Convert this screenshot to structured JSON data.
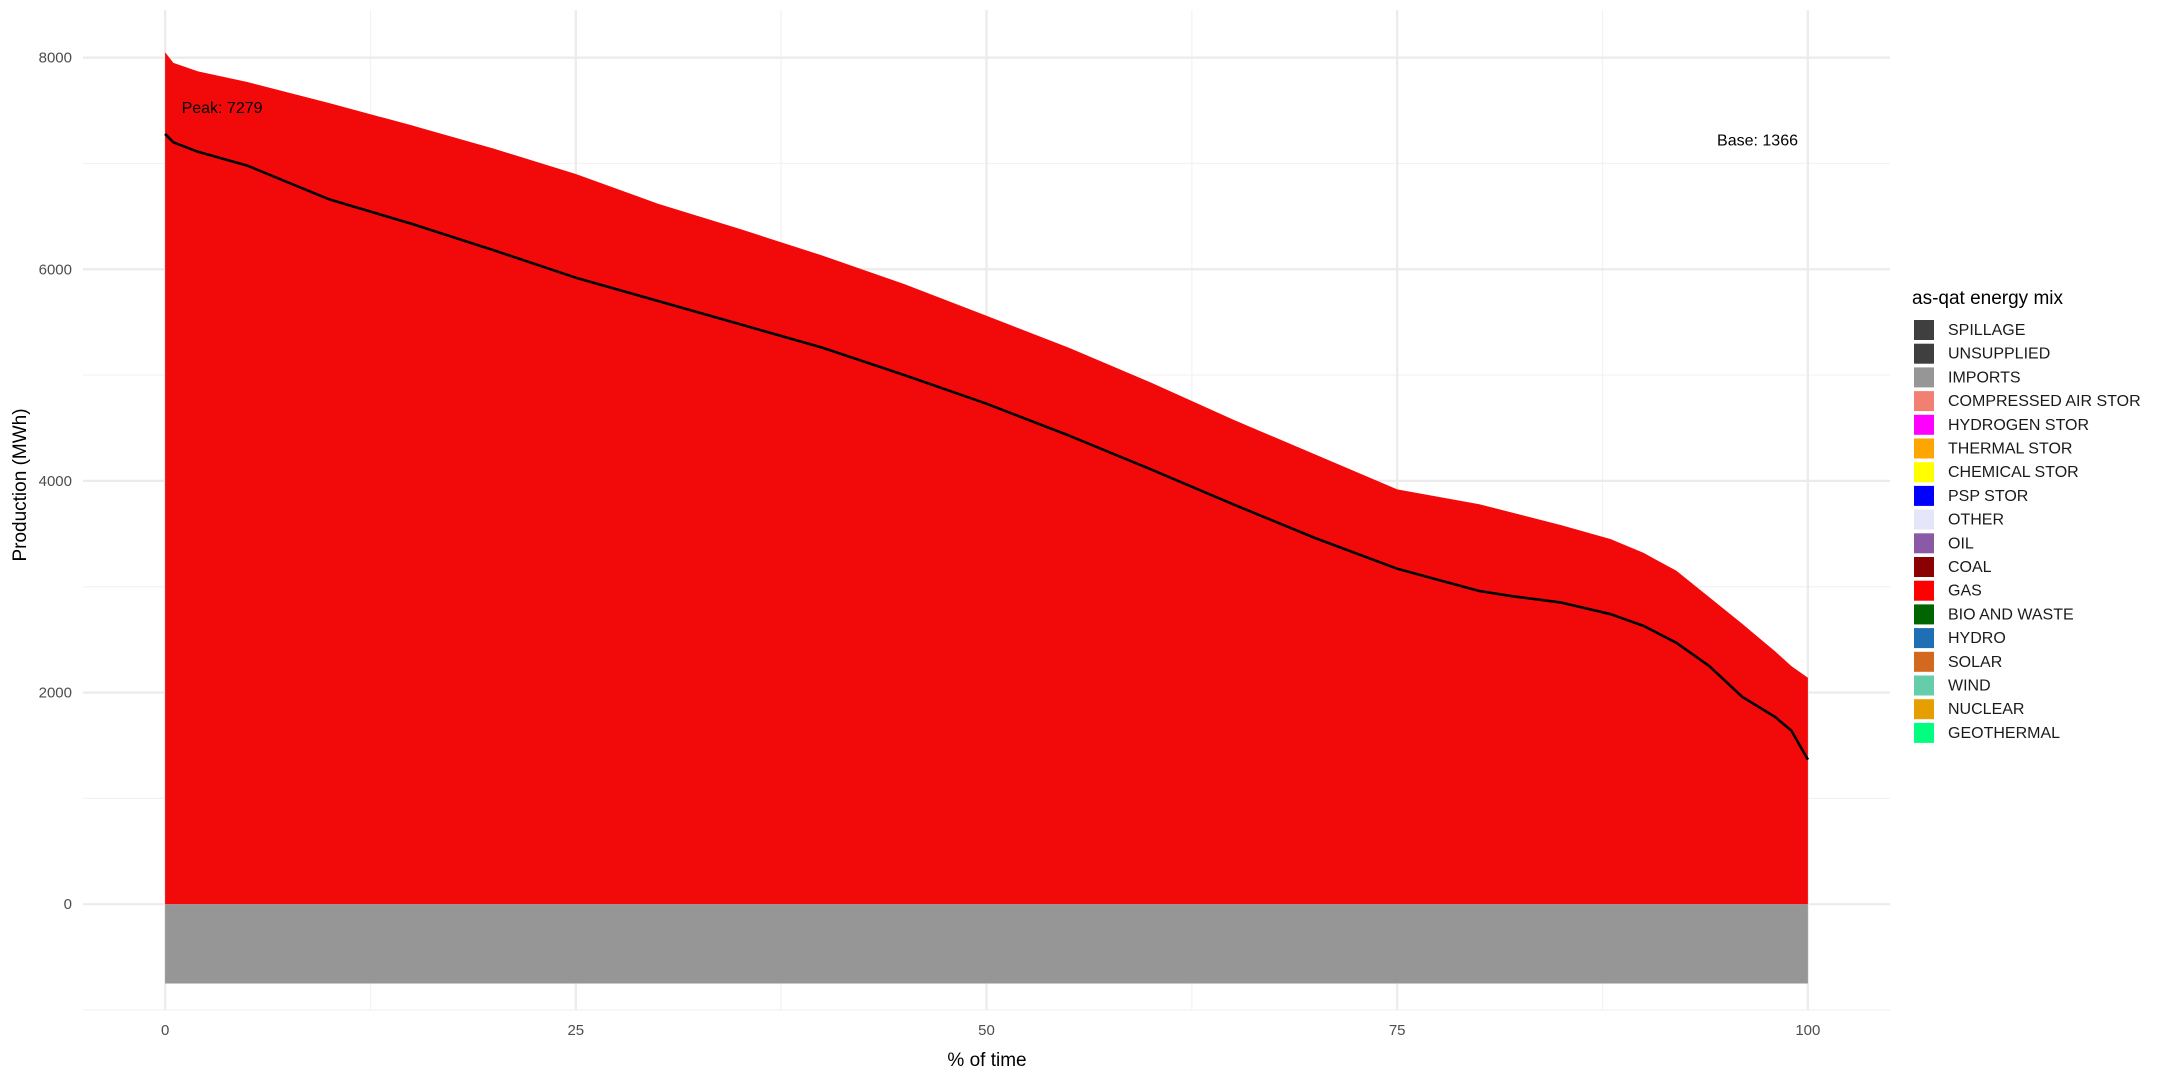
{
  "chart_data": {
    "type": "area",
    "title": "",
    "xlabel": "% of time",
    "ylabel": "Production (MWh)",
    "xlim": [
      -5,
      105
    ],
    "ylim": [
      -1000,
      8450
    ],
    "x_ticks": [
      0,
      25,
      50,
      75,
      100
    ],
    "y_ticks": [
      0,
      2000,
      4000,
      6000,
      8000
    ],
    "grid": true,
    "legend": {
      "title": "as-qat energy mix",
      "position": "right",
      "entries": [
        {
          "label": "SPILLAGE",
          "color": "#3f3f3f"
        },
        {
          "label": "UNSUPPLIED",
          "color": "#3f3f3f"
        },
        {
          "label": "IMPORTS",
          "color": "#969696"
        },
        {
          "label": "COMPRESSED AIR STOR",
          "color": "#f28072"
        },
        {
          "label": "HYDROGEN STOR",
          "color": "#ff00ff"
        },
        {
          "label": "THERMAL STOR",
          "color": "#ffa500"
        },
        {
          "label": "CHEMICAL STOR",
          "color": "#ffff00"
        },
        {
          "label": "PSP STOR",
          "color": "#0000ff"
        },
        {
          "label": "OTHER",
          "color": "#e6e6fa"
        },
        {
          "label": "OIL",
          "color": "#8a5aa6"
        },
        {
          "label": "COAL",
          "color": "#8b0000"
        },
        {
          "label": "GAS",
          "color": "#ff0000"
        },
        {
          "label": "BIO AND WASTE",
          "color": "#006400"
        },
        {
          "label": "HYDRO",
          "color": "#1f6fb4"
        },
        {
          "label": "SOLAR",
          "color": "#d2691e"
        },
        {
          "label": "WIND",
          "color": "#66cdaa"
        },
        {
          "label": "NUCLEAR",
          "color": "#e69f00"
        },
        {
          "label": "GEOTHERMAL",
          "color": "#00ff7f"
        }
      ]
    },
    "series": [
      {
        "name": "GAS",
        "color": "#f20a0a",
        "x": [
          0,
          0.5,
          2,
          5,
          10,
          15,
          20,
          25,
          30,
          35,
          40,
          45,
          50,
          55,
          60,
          65,
          70,
          75,
          80,
          82,
          85,
          88,
          90,
          92,
          94,
          96,
          98,
          99,
          100
        ],
        "values": [
          8050,
          7950,
          7870,
          7770,
          7570,
          7360,
          7140,
          6900,
          6620,
          6380,
          6130,
          5860,
          5560,
          5260,
          4930,
          4580,
          4250,
          3920,
          3780,
          3700,
          3580,
          3450,
          3320,
          3150,
          2900,
          2650,
          2390,
          2250,
          2140
        ]
      },
      {
        "name": "IMPORTS",
        "color": "#969696",
        "x": [
          0,
          100
        ],
        "values": [
          -750,
          -750
        ]
      },
      {
        "name": "Load",
        "color": "#000000",
        "x": [
          0,
          0.5,
          2,
          5,
          10,
          15,
          20,
          25,
          30,
          35,
          40,
          45,
          50,
          55,
          60,
          65,
          70,
          75,
          80,
          82,
          85,
          88,
          90,
          92,
          94,
          96,
          98,
          99,
          100
        ],
        "values": [
          7279,
          7200,
          7110,
          6980,
          6660,
          6430,
          6180,
          5920,
          5700,
          5480,
          5260,
          5000,
          4730,
          4430,
          4110,
          3780,
          3460,
          3170,
          2960,
          2910,
          2850,
          2740,
          2630,
          2470,
          2250,
          1960,
          1770,
          1640,
          1366
        ]
      }
    ],
    "annotations": [
      {
        "text": "Peak: 7279",
        "x": 1,
        "y": 7479
      },
      {
        "text": "Base: 1366",
        "x": 99.4,
        "y": 7170
      }
    ]
  }
}
